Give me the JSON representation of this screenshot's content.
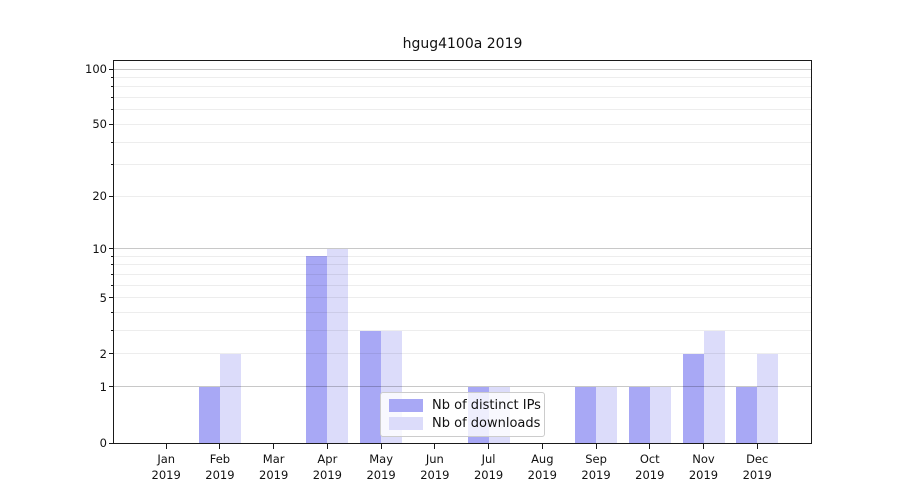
{
  "page": {
    "background": "#ffffff"
  },
  "chart_data": {
    "type": "bar",
    "title": "hgug4100a 2019",
    "x_year": "2019",
    "categories": [
      "Jan",
      "Feb",
      "Mar",
      "Apr",
      "May",
      "Jun",
      "Jul",
      "Aug",
      "Sep",
      "Oct",
      "Nov",
      "Dec"
    ],
    "series": [
      {
        "name": "Nb of distinct IPs",
        "key": "distinct-ips",
        "color": "#a8a8f5",
        "values": [
          0,
          1,
          0,
          9,
          3,
          0,
          1,
          0,
          1,
          1,
          2,
          1
        ]
      },
      {
        "name": "Nb of downloads",
        "key": "downloads",
        "color": "#dcdcfa",
        "values": [
          0,
          2,
          0,
          10,
          3,
          0,
          1,
          0,
          1,
          1,
          3,
          2
        ]
      }
    ],
    "yscale": "log1p",
    "ylim": [
      0,
      112
    ],
    "yticks": [
      {
        "value": 100,
        "label": "100"
      },
      {
        "value": 50,
        "label": "50"
      },
      {
        "value": 20,
        "label": "20"
      },
      {
        "value": 10,
        "label": "10"
      },
      {
        "value": 5,
        "label": "5"
      },
      {
        "value": 2,
        "label": "2"
      },
      {
        "value": 1,
        "label": "1"
      },
      {
        "value": 0,
        "label": "0"
      }
    ],
    "minor_tick_values": [
      3,
      4,
      6,
      7,
      8,
      9,
      30,
      40,
      60,
      70,
      80,
      90
    ],
    "gridlines": {
      "minor": [
        2,
        3,
        4,
        5,
        6,
        7,
        8,
        9,
        20,
        30,
        40,
        50,
        60,
        70,
        80,
        90
      ],
      "emphasized": [
        1,
        10,
        100
      ]
    },
    "grid": true,
    "legend_position": "lower-center"
  }
}
